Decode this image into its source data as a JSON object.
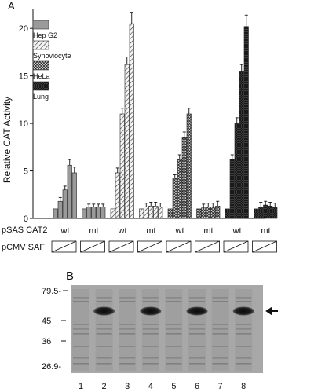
{
  "panel_a": {
    "letter": "A",
    "ylabel": "Relative CAT Activity",
    "ylim": [
      0,
      22
    ],
    "yticks": [
      0,
      5,
      10,
      15,
      20
    ],
    "row1_label": "pSAS CAT2",
    "row2_label": "pCMV SAF",
    "group_labels": [
      "wt",
      "mt",
      "wt",
      "mt",
      "wt",
      "mt",
      "wt",
      "mt"
    ],
    "legend": [
      {
        "label": "Hep G2",
        "pattern": "solid-gray"
      },
      {
        "label": "Synoviocyte",
        "pattern": "diagonal-hatch"
      },
      {
        "label": "HeLa",
        "pattern": "crosshatch"
      },
      {
        "label": "Lung",
        "pattern": "dark-crosshatch"
      }
    ]
  },
  "chart_data": {
    "type": "bar",
    "title": "",
    "xlabel": "",
    "ylabel": "Relative CAT Activity",
    "ylim": [
      0,
      22
    ],
    "categories": [
      "wt",
      "mt",
      "wt",
      "mt",
      "wt",
      "mt",
      "wt",
      "mt"
    ],
    "groups": [
      {
        "label": "wt",
        "cell_type": "Hep G2",
        "values": [
          1.0,
          1.8,
          3.0,
          5.6,
          4.8
        ],
        "errors": [
          0,
          0.4,
          0.4,
          0.6,
          0.6
        ]
      },
      {
        "label": "mt",
        "cell_type": "Hep G2",
        "values": [
          1.0,
          1.2,
          1.2,
          1.2,
          1.2
        ],
        "errors": [
          0,
          0.3,
          0.3,
          0.3,
          0.3
        ]
      },
      {
        "label": "wt",
        "cell_type": "Synoviocyte",
        "values": [
          1.0,
          4.8,
          11.0,
          16.2,
          20.5
        ],
        "errors": [
          0,
          0.5,
          0.6,
          0.8,
          1.2
        ]
      },
      {
        "label": "mt",
        "cell_type": "Synoviocyte",
        "values": [
          1.0,
          1.2,
          1.3,
          1.3,
          1.2
        ],
        "errors": [
          0,
          0.4,
          0.4,
          0.4,
          0.4
        ]
      },
      {
        "label": "wt",
        "cell_type": "HeLa",
        "values": [
          1.0,
          4.2,
          6.2,
          8.5,
          11.0
        ],
        "errors": [
          0,
          0.4,
          0.5,
          0.6,
          0.6
        ]
      },
      {
        "label": "mt",
        "cell_type": "HeLa",
        "values": [
          1.0,
          1.1,
          1.2,
          1.2,
          1.3
        ],
        "errors": [
          0,
          0.4,
          0.4,
          0.4,
          0.5
        ]
      },
      {
        "label": "wt",
        "cell_type": "Lung",
        "values": [
          1.0,
          6.2,
          10.0,
          15.5,
          20.2
        ],
        "errors": [
          0,
          0.5,
          0.6,
          0.7,
          1.2
        ]
      },
      {
        "label": "mt",
        "cell_type": "Lung",
        "values": [
          1.0,
          1.2,
          1.4,
          1.3,
          1.2
        ],
        "errors": [
          0,
          0.5,
          0.4,
          0.4,
          0.4
        ]
      }
    ]
  },
  "panel_b": {
    "letter": "B",
    "mw_markers": [
      "79.5-",
      "45",
      "36",
      "26.9-"
    ],
    "lane_labels": [
      "1",
      "2",
      "3",
      "4",
      "5",
      "6",
      "7",
      "8"
    ],
    "strong_band_lanes": [
      2,
      4,
      6,
      8
    ]
  },
  "colors": {
    "hepg2": "#9a9a9a",
    "synoviocyte_fill": "#f2f2f2",
    "hela_fill": "#c8c8c8",
    "lung_fill": "#3a3a3a",
    "blot_background": "#a9a9a9"
  }
}
